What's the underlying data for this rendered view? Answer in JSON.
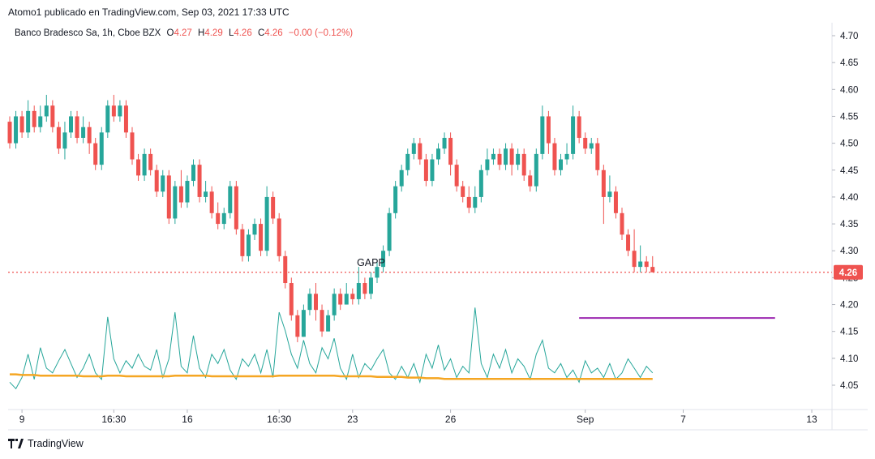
{
  "header": {
    "attribution": "Atomo1 publicado en TradingView.com, Sep 03, 2021 17:33 UTC"
  },
  "legend": {
    "symbol": "Banco Bradesco Sa, 1h, Cboe BZX",
    "o_label": "O",
    "o_value": "4.27",
    "h_label": "H",
    "h_value": "4.29",
    "l_label": "L",
    "l_value": "4.26",
    "c_label": "C",
    "c_value": "4.26",
    "change": "−0.00 (−0.12%)"
  },
  "footer": {
    "brand": "TradingView"
  },
  "colors": {
    "up": "#26a69a",
    "down": "#ef5350",
    "ma": "#f5a623",
    "level": "#9c27b0",
    "volume": "#26a69a"
  },
  "chart_data": {
    "type": "candlestick",
    "y_ticks": [
      "4.05",
      "4.10",
      "4.15",
      "4.20",
      "4.25",
      "4.30",
      "4.35",
      "4.40",
      "4.45",
      "4.50",
      "4.55",
      "4.60",
      "4.65",
      "4.70"
    ],
    "ylim": [
      4.0,
      4.72
    ],
    "x_ticks": [
      {
        "label": "9",
        "bar": 2
      },
      {
        "label": "16:30",
        "bar": 17
      },
      {
        "label": "16",
        "bar": 29
      },
      {
        "label": "16:30",
        "bar": 44
      },
      {
        "label": "23",
        "bar": 56
      },
      {
        "label": "26",
        "bar": 72
      },
      {
        "label": "Sep",
        "bar": 94
      },
      {
        "label": "7",
        "bar": 110
      },
      {
        "label": "13",
        "bar": 131
      }
    ],
    "last_price": 4.26,
    "last_price_label": "4.26",
    "annotation": {
      "text": "GAPP",
      "bar": 59,
      "price": 4.272
    },
    "horizontal_line": {
      "price": 4.175,
      "from_bar": 93,
      "to_bar": 125
    },
    "candles": [
      [
        4.54,
        4.5,
        4.55,
        4.49
      ],
      [
        4.5,
        4.55,
        4.56,
        4.49
      ],
      [
        4.55,
        4.52,
        4.56,
        4.51
      ],
      [
        4.52,
        4.56,
        4.58,
        4.51
      ],
      [
        4.56,
        4.53,
        4.57,
        4.52
      ],
      [
        4.53,
        4.55,
        4.57,
        4.52
      ],
      [
        4.55,
        4.57,
        4.59,
        4.54
      ],
      [
        4.57,
        4.53,
        4.58,
        4.52
      ],
      [
        4.53,
        4.49,
        4.54,
        4.48
      ],
      [
        4.49,
        4.52,
        4.54,
        4.47
      ],
      [
        4.52,
        4.55,
        4.56,
        4.51
      ],
      [
        4.55,
        4.51,
        4.56,
        4.5
      ],
      [
        4.51,
        4.53,
        4.55,
        4.5
      ],
      [
        4.53,
        4.5,
        4.54,
        4.48
      ],
      [
        4.5,
        4.46,
        4.51,
        4.45
      ],
      [
        4.46,
        4.52,
        4.53,
        4.45
      ],
      [
        4.52,
        4.57,
        4.58,
        4.51
      ],
      [
        4.57,
        4.55,
        4.59,
        4.54
      ],
      [
        4.55,
        4.57,
        4.58,
        4.54
      ],
      [
        4.57,
        4.52,
        4.58,
        4.51
      ],
      [
        4.52,
        4.47,
        4.53,
        4.46
      ],
      [
        4.47,
        4.44,
        4.48,
        4.43
      ],
      [
        4.44,
        4.48,
        4.49,
        4.43
      ],
      [
        4.48,
        4.45,
        4.49,
        4.44
      ],
      [
        4.45,
        4.41,
        4.46,
        4.4
      ],
      [
        4.41,
        4.44,
        4.45,
        4.4
      ],
      [
        4.44,
        4.36,
        4.45,
        4.35
      ],
      [
        4.36,
        4.42,
        4.43,
        4.35
      ],
      [
        4.42,
        4.39,
        4.45,
        4.38
      ],
      [
        4.39,
        4.43,
        4.44,
        4.38
      ],
      [
        4.43,
        4.46,
        4.47,
        4.42
      ],
      [
        4.46,
        4.4,
        4.47,
        4.39
      ],
      [
        4.4,
        4.41,
        4.43,
        4.39
      ],
      [
        4.41,
        4.37,
        4.42,
        4.36
      ],
      [
        4.37,
        4.35,
        4.39,
        4.34
      ],
      [
        4.35,
        4.37,
        4.38,
        4.34
      ],
      [
        4.37,
        4.42,
        4.43,
        4.36
      ],
      [
        4.42,
        4.34,
        4.43,
        4.33
      ],
      [
        4.34,
        4.29,
        4.35,
        4.28
      ],
      [
        4.29,
        4.33,
        4.34,
        4.28
      ],
      [
        4.33,
        4.35,
        4.36,
        4.32
      ],
      [
        4.35,
        4.3,
        4.36,
        4.29
      ],
      [
        4.3,
        4.4,
        4.42,
        4.29
      ],
      [
        4.4,
        4.36,
        4.41,
        4.35
      ],
      [
        4.36,
        4.29,
        4.37,
        4.28
      ],
      [
        4.29,
        4.24,
        4.3,
        4.23
      ],
      [
        4.24,
        4.18,
        4.25,
        4.17
      ],
      [
        4.18,
        4.14,
        4.19,
        4.13
      ],
      [
        4.14,
        4.19,
        4.2,
        4.14
      ],
      [
        4.19,
        4.22,
        4.23,
        4.18
      ],
      [
        4.22,
        4.19,
        4.24,
        4.17
      ],
      [
        4.19,
        4.15,
        4.2,
        4.14
      ],
      [
        4.15,
        4.18,
        4.19,
        4.15
      ],
      [
        4.18,
        4.22,
        4.23,
        4.17
      ],
      [
        4.22,
        4.2,
        4.23,
        4.19
      ],
      [
        4.2,
        4.22,
        4.24,
        4.2
      ],
      [
        4.22,
        4.21,
        4.23,
        4.2
      ],
      [
        4.21,
        4.24,
        4.27,
        4.2
      ],
      [
        4.24,
        4.22,
        4.25,
        4.21
      ],
      [
        4.22,
        4.25,
        4.26,
        4.21
      ],
      [
        4.25,
        4.27,
        4.28,
        4.24
      ],
      [
        4.27,
        4.3,
        4.31,
        4.26
      ],
      [
        4.3,
        4.37,
        4.38,
        4.29
      ],
      [
        4.37,
        4.42,
        4.43,
        4.36
      ],
      [
        4.42,
        4.45,
        4.46,
        4.41
      ],
      [
        4.45,
        4.48,
        4.49,
        4.44
      ],
      [
        4.48,
        4.5,
        4.51,
        4.47
      ],
      [
        4.5,
        4.47,
        4.51,
        4.46
      ],
      [
        4.47,
        4.43,
        4.48,
        4.42
      ],
      [
        4.43,
        4.47,
        4.48,
        4.42
      ],
      [
        4.47,
        4.49,
        4.5,
        4.46
      ],
      [
        4.49,
        4.51,
        4.52,
        4.48
      ],
      [
        4.51,
        4.46,
        4.52,
        4.44
      ],
      [
        4.46,
        4.42,
        4.47,
        4.41
      ],
      [
        4.42,
        4.4,
        4.43,
        4.39
      ],
      [
        4.4,
        4.38,
        4.42,
        4.37
      ],
      [
        4.38,
        4.4,
        4.42,
        4.37
      ],
      [
        4.4,
        4.45,
        4.46,
        4.39
      ],
      [
        4.45,
        4.47,
        4.49,
        4.44
      ],
      [
        4.47,
        4.48,
        4.49,
        4.46
      ],
      [
        4.48,
        4.46,
        4.49,
        4.45
      ],
      [
        4.46,
        4.49,
        4.5,
        4.45
      ],
      [
        4.49,
        4.46,
        4.5,
        4.44
      ],
      [
        4.46,
        4.48,
        4.49,
        4.45
      ],
      [
        4.48,
        4.44,
        4.49,
        4.43
      ],
      [
        4.44,
        4.42,
        4.45,
        4.41
      ],
      [
        4.42,
        4.48,
        4.49,
        4.41
      ],
      [
        4.48,
        4.55,
        4.57,
        4.47
      ],
      [
        4.55,
        4.5,
        4.56,
        4.48
      ],
      [
        4.5,
        4.45,
        4.51,
        4.44
      ],
      [
        4.45,
        4.47,
        4.48,
        4.44
      ],
      [
        4.47,
        4.48,
        4.5,
        4.46
      ],
      [
        4.48,
        4.55,
        4.57,
        4.47
      ],
      [
        4.55,
        4.51,
        4.56,
        4.5
      ],
      [
        4.51,
        4.49,
        4.52,
        4.48
      ],
      [
        4.49,
        4.5,
        4.51,
        4.48
      ],
      [
        4.5,
        4.45,
        4.51,
        4.44
      ],
      [
        4.45,
        4.4,
        4.46,
        4.35
      ],
      [
        4.4,
        4.41,
        4.44,
        4.39
      ],
      [
        4.41,
        4.37,
        4.42,
        4.36
      ],
      [
        4.37,
        4.33,
        4.38,
        4.32
      ],
      [
        4.33,
        4.3,
        4.34,
        4.29
      ],
      [
        4.3,
        4.27,
        4.34,
        4.26
      ],
      [
        4.27,
        4.28,
        4.31,
        4.26
      ],
      [
        4.28,
        4.27,
        4.29,
        4.26
      ],
      [
        4.27,
        4.26,
        4.29,
        4.26
      ]
    ],
    "volume": [
      0.25,
      0.18,
      0.3,
      0.55,
      0.28,
      0.62,
      0.4,
      0.35,
      0.48,
      0.6,
      0.45,
      0.3,
      0.4,
      0.55,
      0.35,
      0.28,
      0.95,
      0.5,
      0.35,
      0.48,
      0.4,
      0.55,
      0.42,
      0.38,
      0.6,
      0.3,
      0.5,
      1.0,
      0.42,
      0.35,
      0.75,
      0.4,
      0.3,
      0.55,
      0.45,
      0.6,
      0.38,
      0.28,
      0.5,
      0.42,
      0.55,
      0.35,
      0.6,
      0.3,
      1.0,
      0.8,
      0.55,
      0.4,
      0.7,
      0.45,
      0.35,
      0.62,
      0.5,
      0.72,
      0.4,
      0.28,
      0.55,
      0.3,
      0.45,
      0.38,
      0.5,
      0.6,
      0.35,
      0.28,
      0.42,
      0.3,
      0.45,
      0.25,
      0.55,
      0.4,
      0.65,
      0.38,
      0.5,
      0.3,
      0.42,
      0.35,
      1.05,
      0.45,
      0.3,
      0.55,
      0.4,
      0.6,
      0.35,
      0.5,
      0.42,
      0.28,
      0.55,
      0.7,
      0.4,
      0.35,
      0.45,
      0.3,
      0.38,
      0.25,
      0.48,
      0.35,
      0.4,
      0.3,
      0.45,
      0.28,
      0.35,
      0.5,
      0.4,
      0.3,
      0.42,
      0.35
    ],
    "ma": [
      0.48,
      0.48,
      0.47,
      0.47,
      0.47,
      0.46,
      0.46,
      0.46,
      0.46,
      0.46,
      0.46,
      0.46,
      0.45,
      0.45,
      0.45,
      0.45,
      0.46,
      0.46,
      0.46,
      0.45,
      0.45,
      0.45,
      0.45,
      0.45,
      0.45,
      0.45,
      0.45,
      0.46,
      0.46,
      0.46,
      0.46,
      0.46,
      0.46,
      0.45,
      0.45,
      0.45,
      0.45,
      0.45,
      0.45,
      0.45,
      0.45,
      0.45,
      0.45,
      0.45,
      0.46,
      0.46,
      0.46,
      0.46,
      0.46,
      0.46,
      0.46,
      0.46,
      0.46,
      0.46,
      0.45,
      0.45,
      0.45,
      0.45,
      0.45,
      0.45,
      0.44,
      0.44,
      0.44,
      0.44,
      0.44,
      0.43,
      0.43,
      0.43,
      0.42,
      0.42,
      0.42,
      0.41,
      0.41,
      0.41,
      0.41,
      0.41,
      0.41,
      0.41,
      0.41,
      0.41,
      0.41,
      0.41,
      0.41,
      0.41,
      0.41,
      0.41,
      0.41,
      0.41,
      0.41,
      0.41,
      0.41,
      0.41,
      0.41,
      0.41,
      0.41,
      0.41,
      0.41,
      0.41,
      0.41,
      0.41,
      0.41,
      0.41,
      0.41,
      0.41,
      0.41,
      0.41
    ]
  }
}
